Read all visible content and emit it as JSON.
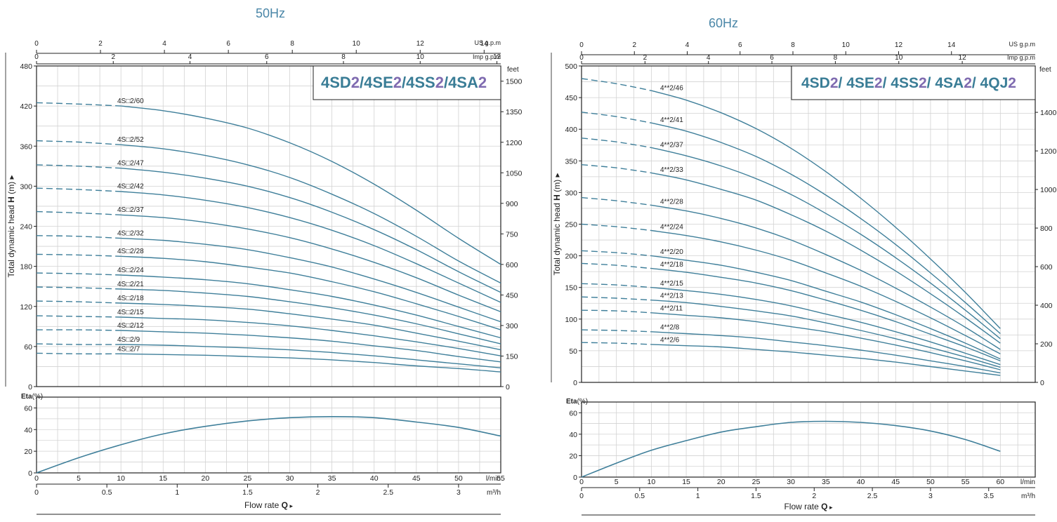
{
  "colors": {
    "curve": "#3f7f9a",
    "title_teal": "#3a7d96",
    "title_purple": "#7f6bb0",
    "freq_title": "#4b87a8",
    "grid": "#d2d2d2",
    "axis": "#222222"
  },
  "chart_data": [
    {
      "type": "line",
      "title": "50Hz",
      "model_title": [
        {
          "text": "4SD",
          "color": "teal"
        },
        {
          "text": "2",
          "color": "purple"
        },
        {
          "text": "/4SE",
          "color": "teal"
        },
        {
          "text": "2",
          "color": "purple"
        },
        {
          "text": "/4SS",
          "color": "teal"
        },
        {
          "text": "2",
          "color": "purple"
        },
        {
          "text": "/4SA",
          "color": "teal"
        },
        {
          "text": "2",
          "color": "purple"
        }
      ],
      "ylabel": "Total dynamic head",
      "ylabel_symbol": "H",
      "ylabel_unit": "(m)",
      "xlabel": "Flow rate",
      "xlabel_symbol": "Q",
      "xlim": [
        0,
        55
      ],
      "ylim": [
        0,
        480
      ],
      "yticks": [
        0,
        60,
        120,
        180,
        240,
        300,
        360,
        420,
        480
      ],
      "xticks_lmin": [
        0,
        5,
        10,
        15,
        20,
        25,
        30,
        35,
        40,
        45,
        50,
        55
      ],
      "unit_lmin": "l/min",
      "xticks_m3h": [
        0,
        0.5,
        1,
        1.5,
        2,
        2.5,
        3
      ],
      "unit_m3h": "m³/h",
      "xticks_usgpm": [
        0,
        2,
        4,
        6,
        8,
        10,
        12,
        14
      ],
      "unit_usgpm": "US g.p.m",
      "xticks_impgpm": [
        0,
        2,
        4,
        6,
        8,
        10,
        12
      ],
      "unit_impgpm": "Imp g.p.m",
      "feet_label": "feet",
      "feet_ticks": [
        0,
        150,
        300,
        450,
        600,
        750,
        900,
        1050,
        1200,
        1350,
        1500
      ],
      "grid": true,
      "dashed_until": 10,
      "curve_xs": [
        0,
        5,
        10,
        15,
        20,
        25,
        30,
        35,
        40,
        45,
        50,
        55
      ],
      "series": [
        {
          "name": "4S□2/60",
          "values": [
            425,
            423,
            420,
            413,
            402,
            387,
            365,
            337,
            303,
            264,
            222,
            183
          ]
        },
        {
          "name": "4S□2/52",
          "values": [
            368,
            366,
            362,
            356,
            346,
            332,
            313,
            288,
            259,
            225,
            188,
            155
          ]
        },
        {
          "name": "4S□2/47",
          "values": [
            332,
            330,
            327,
            321,
            312,
            300,
            283,
            261,
            235,
            205,
            172,
            141
          ]
        },
        {
          "name": "4S□2/42",
          "values": [
            297,
            295,
            292,
            287,
            279,
            268,
            253,
            234,
            211,
            184,
            155,
            126
          ]
        },
        {
          "name": "4S□2/37",
          "values": [
            262,
            260,
            257,
            253,
            246,
            236,
            223,
            206,
            186,
            163,
            137,
            112
          ]
        },
        {
          "name": "4S□2/32",
          "values": [
            226,
            225,
            222,
            219,
            213,
            205,
            193,
            179,
            161,
            141,
            119,
            97
          ]
        },
        {
          "name": "4S□2/28",
          "values": [
            198,
            197,
            195,
            192,
            187,
            179,
            170,
            157,
            142,
            124,
            105,
            85
          ]
        },
        {
          "name": "4S□2/24",
          "values": [
            170,
            169,
            167,
            164,
            160,
            154,
            145,
            135,
            122,
            107,
            90,
            73
          ]
        },
        {
          "name": "4S□2/21",
          "values": [
            149,
            148,
            146,
            144,
            140,
            135,
            127,
            118,
            107,
            94,
            79,
            64
          ]
        },
        {
          "name": "4S□2/18",
          "values": [
            128,
            127,
            125,
            123,
            120,
            116,
            109,
            101,
            92,
            80,
            68,
            55
          ]
        },
        {
          "name": "4S□2/15",
          "values": [
            106,
            105,
            104,
            102,
            100,
            96,
            91,
            84,
            76,
            67,
            57,
            46
          ]
        },
        {
          "name": "4S□2/12",
          "values": [
            85,
            85,
            84,
            82,
            80,
            77,
            73,
            68,
            61,
            54,
            45,
            37
          ]
        },
        {
          "name": "4S□2/9",
          "values": [
            64,
            63,
            63,
            62,
            60,
            58,
            55,
            51,
            46,
            40,
            34,
            28
          ]
        },
        {
          "name": "4S□2/7",
          "values": [
            50,
            49,
            49,
            48,
            47,
            45,
            43,
            40,
            36,
            31,
            27,
            22
          ]
        }
      ],
      "eta": {
        "label": "Eta",
        "unit": "(%)",
        "ylim": [
          0,
          70
        ],
        "yticks": [
          0,
          20,
          40,
          60
        ],
        "x": [
          0,
          5,
          10,
          15,
          20,
          25,
          30,
          35,
          40,
          45,
          50,
          55
        ],
        "values": [
          0,
          14,
          26,
          36,
          43,
          48,
          51,
          52,
          51,
          47,
          42,
          34
        ]
      }
    },
    {
      "type": "line",
      "title": "60Hz",
      "model_title": [
        {
          "text": "4SD",
          "color": "teal"
        },
        {
          "text": "2",
          "color": "purple"
        },
        {
          "text": "/ 4SE",
          "color": "teal"
        },
        {
          "text": "2",
          "color": "purple"
        },
        {
          "text": "/ 4SS",
          "color": "teal"
        },
        {
          "text": "2",
          "color": "purple"
        },
        {
          "text": "/ 4SA",
          "color": "teal"
        },
        {
          "text": "2",
          "color": "purple"
        },
        {
          "text": "/ 4QJ",
          "color": "teal"
        },
        {
          "text": "2",
          "color": "purple"
        }
      ],
      "ylabel": "Total dynamic head",
      "ylabel_symbol": "H",
      "ylabel_unit": "(m)",
      "xlabel": "Flow rate",
      "xlabel_symbol": "Q",
      "xlim": [
        0,
        65
      ],
      "ylim": [
        0,
        500
      ],
      "yticks": [
        0,
        50,
        100,
        150,
        200,
        250,
        300,
        350,
        400,
        450,
        500
      ],
      "xticks_lmin": [
        0,
        5,
        10,
        15,
        20,
        25,
        30,
        35,
        40,
        45,
        50,
        55,
        60
      ],
      "unit_lmin": "l/min",
      "xticks_m3h": [
        0,
        0.5,
        1,
        1.5,
        2,
        2.5,
        3,
        3.5
      ],
      "unit_m3h": "m³/h",
      "xticks_usgpm": [
        0,
        2,
        4,
        6,
        8,
        10,
        12,
        14
      ],
      "unit_usgpm": "US g.p.m",
      "xticks_impgpm": [
        0,
        2,
        4,
        6,
        8,
        10,
        12
      ],
      "unit_impgpm": "Imp g.p.m",
      "feet_label": "feet",
      "feet_ticks": [
        0,
        200,
        400,
        600,
        800,
        1000,
        1200,
        1400
      ],
      "grid": true,
      "dashed_until": 10,
      "curve_xs": [
        0,
        5,
        10,
        15,
        20,
        25,
        30,
        35,
        40,
        45,
        50,
        55,
        60
      ],
      "series": [
        {
          "name": "4**2/46",
          "values": [
            480,
            472,
            461,
            446,
            426,
            401,
            370,
            333,
            291,
            245,
            195,
            142,
            85
          ]
        },
        {
          "name": "4**2/41",
          "values": [
            427,
            420,
            410,
            397,
            379,
            357,
            329,
            296,
            259,
            218,
            173,
            126,
            77
          ]
        },
        {
          "name": "4**2/37",
          "values": [
            386,
            380,
            371,
            358,
            342,
            322,
            297,
            267,
            234,
            197,
            157,
            114,
            69
          ]
        },
        {
          "name": "4**2/33",
          "values": [
            344,
            339,
            331,
            320,
            305,
            288,
            265,
            239,
            209,
            176,
            140,
            102,
            62
          ]
        },
        {
          "name": "4**2/28",
          "values": [
            292,
            287,
            280,
            271,
            259,
            244,
            225,
            202,
            177,
            149,
            119,
            87,
            52
          ]
        },
        {
          "name": "4**2/24",
          "values": [
            250,
            246,
            240,
            232,
            222,
            209,
            193,
            173,
            152,
            128,
            102,
            74,
            45
          ]
        },
        {
          "name": "4**2/20",
          "values": [
            208,
            205,
            200,
            193,
            185,
            174,
            161,
            144,
            127,
            107,
            85,
            62,
            37
          ]
        },
        {
          "name": "4**2/18",
          "values": [
            188,
            185,
            180,
            174,
            166,
            157,
            145,
            130,
            114,
            96,
            76,
            56,
            34
          ]
        },
        {
          "name": "4**2/15",
          "values": [
            156,
            154,
            150,
            145,
            139,
            131,
            121,
            108,
            95,
            80,
            64,
            46,
            28
          ]
        },
        {
          "name": "4**2/13",
          "values": [
            135,
            133,
            130,
            126,
            120,
            113,
            105,
            94,
            82,
            69,
            55,
            40,
            24
          ]
        },
        {
          "name": "4**2/11",
          "values": [
            114,
            113,
            110,
            106,
            102,
            96,
            88,
            80,
            70,
            59,
            47,
            34,
            20
          ]
        },
        {
          "name": "4**2/8",
          "values": [
            83,
            82,
            80,
            77,
            74,
            70,
            64,
            58,
            51,
            43,
            34,
            25,
            15
          ]
        },
        {
          "name": "4**2/6",
          "values": [
            63,
            62,
            60,
            58,
            56,
            52,
            48,
            43,
            38,
            32,
            25,
            18,
            11
          ]
        }
      ],
      "eta": {
        "label": "Eta",
        "unit": "(%)",
        "ylim": [
          0,
          70
        ],
        "yticks": [
          0,
          20,
          40,
          60
        ],
        "x": [
          0,
          5,
          10,
          15,
          20,
          25,
          30,
          35,
          40,
          45,
          50,
          55,
          60
        ],
        "values": [
          0,
          13,
          25,
          34,
          42,
          47,
          51,
          52,
          51,
          48,
          43,
          35,
          24
        ]
      }
    }
  ]
}
